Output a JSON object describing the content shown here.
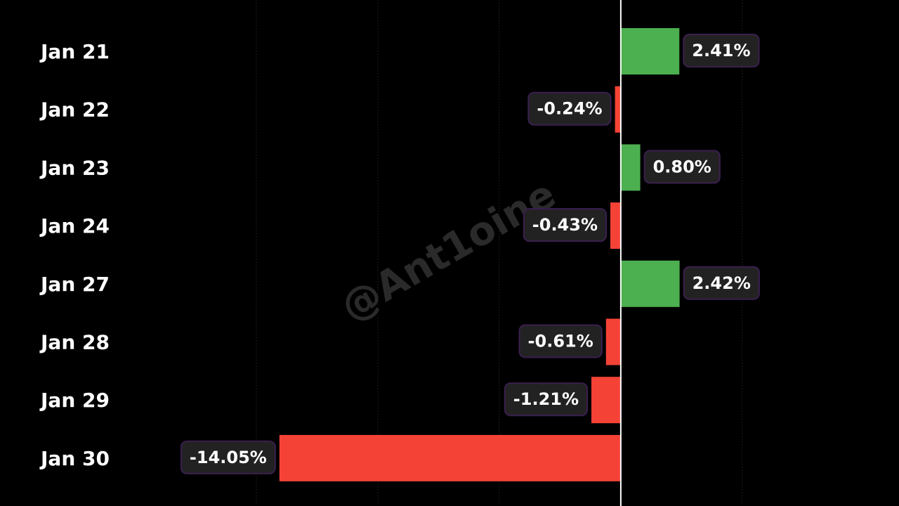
{
  "chart_data": {
    "type": "barh",
    "watermark": "@Ant1oine",
    "categories": [
      "Jan 21",
      "Jan 22",
      "Jan 23",
      "Jan 24",
      "Jan 27",
      "Jan 28",
      "Jan 29",
      "Jan 30"
    ],
    "values": [
      2.41,
      -0.24,
      0.8,
      -0.43,
      2.42,
      -0.61,
      -1.21,
      -14.05
    ],
    "value_labels": [
      "2.41%",
      "-0.24%",
      "0.80%",
      "-0.43%",
      "2.42%",
      "-0.61%",
      "-1.21%",
      "-14.05%"
    ],
    "positive_color": "#4caf50",
    "negative_color": "#f44336",
    "xlim": [
      -25.55,
      11.45
    ],
    "xticks": [
      -15,
      -10,
      -5,
      0,
      5
    ],
    "grid": true
  }
}
